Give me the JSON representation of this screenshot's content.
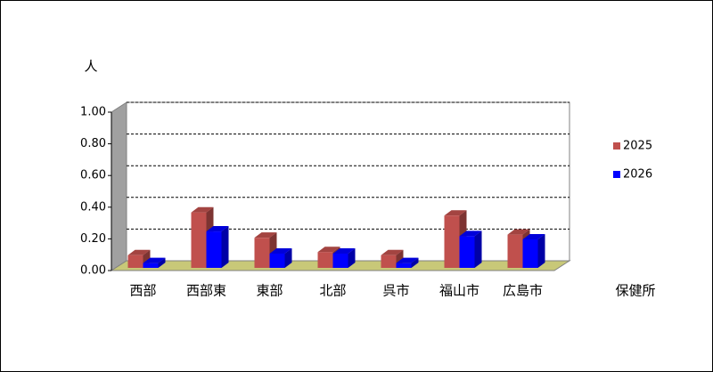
{
  "chart_data": {
    "type": "bar3d",
    "y_unit": "人",
    "x_label": "保健所",
    "categories": [
      "西部",
      "西部東",
      "東部",
      "北部",
      "呉市",
      "福山市",
      "広島市"
    ],
    "series": [
      {
        "name": "2025",
        "color": "#c0504d",
        "values": [
          0.08,
          0.35,
          0.19,
          0.1,
          0.08,
          0.33,
          0.21
        ]
      },
      {
        "name": "2026",
        "color": "#0000ff",
        "values": [
          0.03,
          0.23,
          0.09,
          0.09,
          0.03,
          0.2,
          0.18
        ]
      }
    ],
    "ylim": [
      0,
      1
    ],
    "yticks": [
      {
        "value": 0,
        "label": "0.00"
      },
      {
        "value": 0.2,
        "label": "0.20"
      },
      {
        "value": 0.4,
        "label": "0.40"
      },
      {
        "value": 0.6,
        "label": "0.60"
      },
      {
        "value": 0.8,
        "label": "0.80"
      },
      {
        "value": 1,
        "label": "1.00"
      }
    ],
    "grid": true,
    "legend": "right"
  }
}
